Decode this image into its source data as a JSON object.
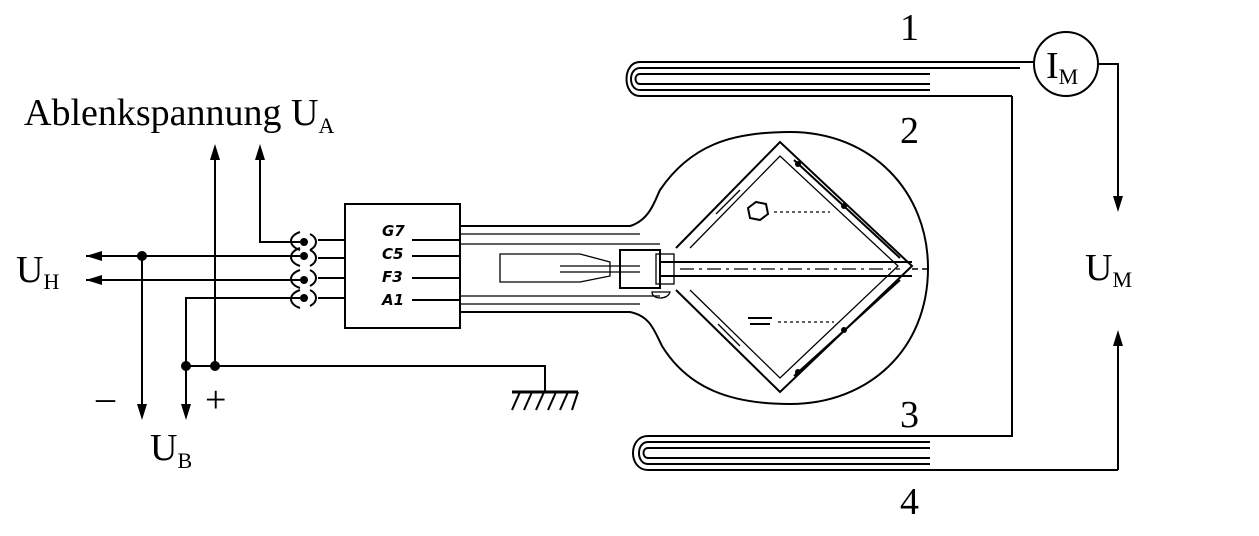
{
  "labels": {
    "ablenk_main": "Ablenkspannung U",
    "ablenk_sub": "A",
    "uh_main": "U",
    "uh_sub": "H",
    "ub_main": "U",
    "ub_sub": "B",
    "um_main": "U",
    "um_sub": "M",
    "im_main": "I",
    "im_sub": "M",
    "minus": "–",
    "plus": "+",
    "n1": "1",
    "n2": "2",
    "n3": "3",
    "n4": "4"
  },
  "pins": [
    "G7",
    "C5",
    "F3",
    "A1"
  ]
}
